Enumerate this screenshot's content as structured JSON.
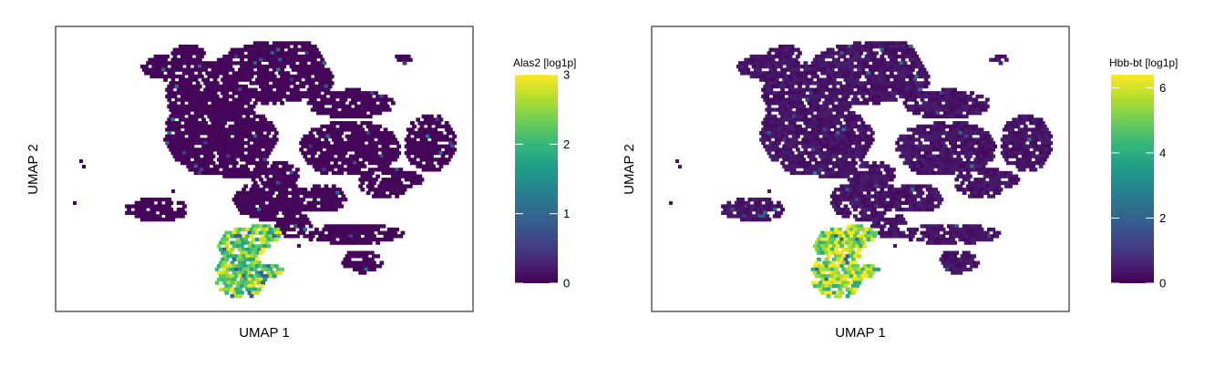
{
  "chart_data": [
    {
      "type": "scatter",
      "subtype": "hexbin-embedding",
      "title": "",
      "xlabel": "UMAP 1",
      "ylabel": "UMAP 2",
      "x_ticks_shown": false,
      "y_ticks_shown": false,
      "grid": false,
      "legend": {
        "title": "Alas2 [log1p]",
        "placement": "right",
        "colormap": "viridis",
        "range": [
          0,
          3
        ],
        "ticks": [
          "0",
          "1",
          "2",
          "3"
        ],
        "tick_values": [
          0,
          1,
          2,
          3
        ]
      },
      "feature": "Alas2",
      "baseline_value": 0.05,
      "high_expression_cluster": {
        "location": "bottom-center",
        "mean_value": 2.3,
        "max_value": 3.0
      }
    },
    {
      "type": "scatter",
      "subtype": "hexbin-embedding",
      "title": "",
      "xlabel": "UMAP 1",
      "ylabel": "UMAP 2",
      "x_ticks_shown": false,
      "y_ticks_shown": false,
      "grid": false,
      "legend": {
        "title": "Hbb-bt [log1p]",
        "placement": "right",
        "colormap": "viridis",
        "range": [
          0,
          6.4
        ],
        "ticks": [
          "0",
          "2",
          "4",
          "6"
        ],
        "tick_values": [
          0,
          2,
          4,
          6
        ]
      },
      "feature": "Hbb-bt",
      "baseline_value": 0.35,
      "high_expression_cluster": {
        "location": "bottom-center",
        "mean_value": 5.4,
        "max_value": 6.4
      }
    }
  ]
}
